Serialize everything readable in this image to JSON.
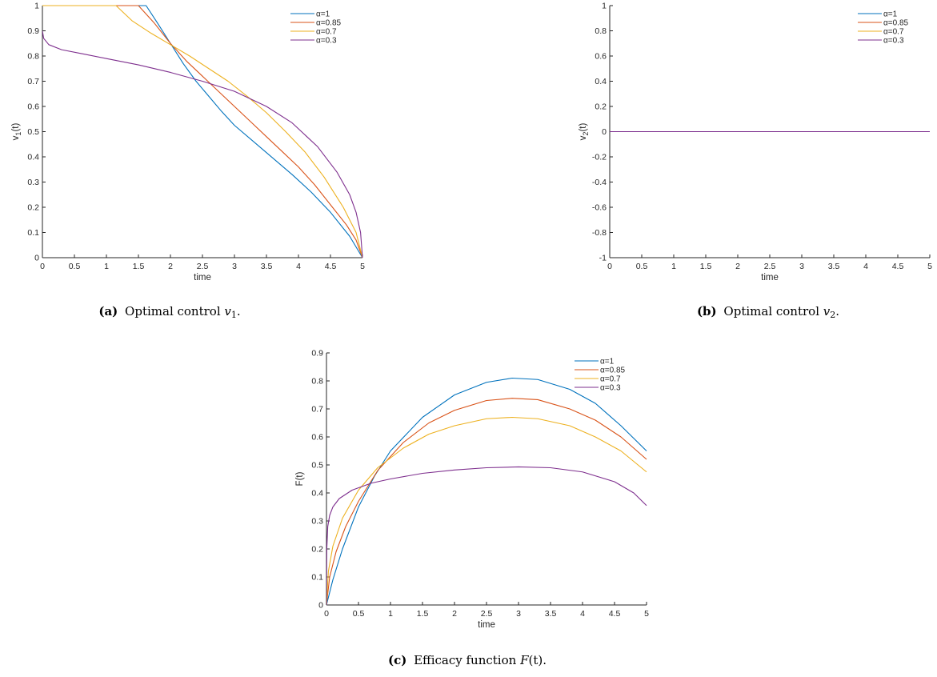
{
  "colors": {
    "alpha_1": "#0072BD",
    "alpha_085": "#D95319",
    "alpha_07": "#EDB120",
    "alpha_03": "#7E2F8E"
  },
  "captions": {
    "a": {
      "tag": "(a)",
      "text": "Optimal control ",
      "math": "v",
      "sub": "1",
      "end": "."
    },
    "b": {
      "tag": "(b)",
      "text": "Optimal control ",
      "math": "v",
      "sub": "2",
      "end": "."
    },
    "c": {
      "tag": "(c)",
      "text": "Efficacy function ",
      "math": "F",
      "tail": "(t)."
    }
  },
  "chart_data": [
    {
      "id": "a",
      "type": "line",
      "xlabel": "time",
      "ylabel_main": "v",
      "ylabel_sub": "1",
      "ylabel_tail": "(t)",
      "xlim": [
        0,
        5
      ],
      "ylim": [
        0,
        1
      ],
      "xticks": [
        "0",
        "0.5",
        "1",
        "1.5",
        "2",
        "2.5",
        "3",
        "3.5",
        "4",
        "4.5",
        "5"
      ],
      "yticks": [
        "0",
        "0.1",
        "0.2",
        "0.3",
        "0.4",
        "0.5",
        "0.6",
        "0.7",
        "0.8",
        "0.9",
        "1"
      ],
      "legend_position": "top-right",
      "series": [
        {
          "name": "α=1",
          "x": [
            0,
            1.62,
            1.8,
            2.0,
            2.2,
            2.4,
            2.6,
            2.8,
            3.0,
            3.3,
            3.6,
            3.9,
            4.2,
            4.5,
            4.8,
            5.0
          ],
          "y": [
            1,
            1,
            0.93,
            0.85,
            0.77,
            0.7,
            0.64,
            0.58,
            0.525,
            0.46,
            0.395,
            0.33,
            0.26,
            0.18,
            0.085,
            0.0
          ]
        },
        {
          "name": "α=0.85",
          "x": [
            0,
            1.5,
            1.75,
            2.0,
            2.25,
            2.5,
            2.75,
            3.0,
            3.25,
            3.5,
            3.75,
            4.0,
            4.25,
            4.5,
            4.75,
            4.9,
            5.0
          ],
          "y": [
            1,
            1,
            0.93,
            0.85,
            0.78,
            0.72,
            0.66,
            0.6,
            0.54,
            0.48,
            0.42,
            0.36,
            0.29,
            0.21,
            0.13,
            0.07,
            0.0
          ]
        },
        {
          "name": "α=0.7",
          "x": [
            0,
            1.15,
            1.4,
            1.7,
            2.0,
            2.3,
            2.6,
            2.9,
            3.2,
            3.5,
            3.8,
            4.1,
            4.4,
            4.7,
            4.9,
            5.0
          ],
          "y": [
            1,
            1,
            0.94,
            0.89,
            0.845,
            0.8,
            0.75,
            0.7,
            0.64,
            0.575,
            0.5,
            0.42,
            0.32,
            0.2,
            0.1,
            0.0
          ]
        },
        {
          "name": "α=0.3",
          "x": [
            0,
            0.02,
            0.1,
            0.3,
            0.6,
            1.0,
            1.5,
            2.0,
            2.5,
            3.0,
            3.5,
            3.9,
            4.3,
            4.6,
            4.8,
            4.9,
            4.97,
            5.0
          ],
          "y": [
            0.9,
            0.87,
            0.845,
            0.825,
            0.81,
            0.79,
            0.765,
            0.735,
            0.7,
            0.66,
            0.6,
            0.535,
            0.44,
            0.34,
            0.25,
            0.18,
            0.1,
            0.0
          ]
        }
      ]
    },
    {
      "id": "b",
      "type": "line",
      "xlabel": "time",
      "ylabel_main": "v",
      "ylabel_sub": "2",
      "ylabel_tail": "(t)",
      "xlim": [
        0,
        5
      ],
      "ylim": [
        -1,
        1
      ],
      "xticks": [
        "0",
        "0.5",
        "1",
        "1.5",
        "2",
        "2.5",
        "3",
        "3.5",
        "4",
        "4.5",
        "5"
      ],
      "yticks": [
        "-1",
        "-0.8",
        "-0.6",
        "-0.4",
        "-0.2",
        "0",
        "0.2",
        "0.4",
        "0.6",
        "0.8",
        "1"
      ],
      "legend_position": "top-right",
      "series": [
        {
          "name": "α=1",
          "x": [
            0,
            5
          ],
          "y": [
            0,
            0
          ]
        },
        {
          "name": "α=0.85",
          "x": [
            0,
            5
          ],
          "y": [
            0,
            0
          ]
        },
        {
          "name": "α=0.7",
          "x": [
            0,
            5
          ],
          "y": [
            0,
            0
          ]
        },
        {
          "name": "α=0.3",
          "x": [
            0,
            5
          ],
          "y": [
            0,
            0
          ]
        }
      ]
    },
    {
      "id": "c",
      "type": "line",
      "xlabel": "time",
      "ylabel_main": "F(t)",
      "ylabel_sub": "",
      "ylabel_tail": "",
      "xlim": [
        0,
        5
      ],
      "ylim": [
        0,
        0.9
      ],
      "xticks": [
        "0",
        "0.5",
        "1",
        "1.5",
        "2",
        "2.5",
        "3",
        "3.5",
        "4",
        "4.5",
        "5"
      ],
      "yticks": [
        "0",
        "0.1",
        "0.2",
        "0.3",
        "0.4",
        "0.5",
        "0.6",
        "0.7",
        "0.8",
        "0.9"
      ],
      "legend_position": "top-right",
      "series": [
        {
          "name": "α=1",
          "x": [
            0,
            0.1,
            0.25,
            0.5,
            0.75,
            1.0,
            1.5,
            2.0,
            2.5,
            2.9,
            3.3,
            3.8,
            4.2,
            4.6,
            5.0
          ],
          "y": [
            0,
            0.09,
            0.2,
            0.35,
            0.46,
            0.55,
            0.67,
            0.75,
            0.795,
            0.81,
            0.805,
            0.77,
            0.72,
            0.64,
            0.55
          ]
        },
        {
          "name": "α=0.85",
          "x": [
            0,
            0.05,
            0.15,
            0.3,
            0.5,
            0.8,
            1.2,
            1.6,
            2.0,
            2.5,
            2.9,
            3.3,
            3.8,
            4.2,
            4.6,
            5.0
          ],
          "y": [
            0,
            0.1,
            0.19,
            0.28,
            0.37,
            0.48,
            0.58,
            0.65,
            0.695,
            0.73,
            0.738,
            0.733,
            0.7,
            0.66,
            0.6,
            0.52
          ]
        },
        {
          "name": "α=0.7",
          "x": [
            0,
            0.03,
            0.1,
            0.25,
            0.5,
            0.8,
            1.2,
            1.6,
            2.0,
            2.5,
            2.9,
            3.3,
            3.8,
            4.2,
            4.6,
            5.0
          ],
          "y": [
            0,
            0.12,
            0.21,
            0.31,
            0.41,
            0.49,
            0.56,
            0.61,
            0.64,
            0.665,
            0.67,
            0.665,
            0.64,
            0.6,
            0.55,
            0.475
          ]
        },
        {
          "name": "α=0.3",
          "x": [
            0,
            0.005,
            0.02,
            0.05,
            0.1,
            0.2,
            0.4,
            0.7,
            1.0,
            1.5,
            2.0,
            2.5,
            3.0,
            3.5,
            4.0,
            4.5,
            4.8,
            5.0
          ],
          "y": [
            0,
            0.2,
            0.28,
            0.32,
            0.35,
            0.38,
            0.41,
            0.435,
            0.45,
            0.47,
            0.482,
            0.49,
            0.493,
            0.49,
            0.475,
            0.44,
            0.4,
            0.355
          ]
        }
      ]
    }
  ]
}
